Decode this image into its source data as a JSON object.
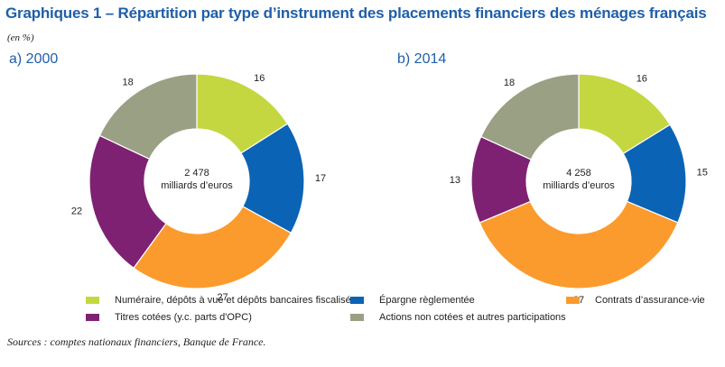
{
  "title": "Graphiques 1 – Répartition par type d’instrument des placements financiers des ménages français",
  "unit": "(en %)",
  "source": "Sources : comptes nationaux financiers, Banque de France.",
  "colors": {
    "numeraire": "#c4d741",
    "epargne": "#0b63b5",
    "assurance": "#fb9b2e",
    "titres": "#7e2173",
    "actions": "#9aa084"
  },
  "legend": [
    {
      "key": "numeraire",
      "label": "Numéraire, dépôts à vue et dépôts bancaires fiscalisés"
    },
    {
      "key": "epargne",
      "label": "Épargne règlementée"
    },
    {
      "key": "assurance",
      "label": "Contrats d’assurance-vie"
    },
    {
      "key": "titres",
      "label": "Titres cotées (y.c. parts d'OPC)"
    },
    {
      "key": "actions",
      "label": "Actions non cotées et autres participations"
    }
  ],
  "chart_data": [
    {
      "type": "pie",
      "title": "a)  2000",
      "center_value": "2 478",
      "center_label": "milliards d’euros",
      "slices": [
        {
          "key": "numeraire",
          "value": 16,
          "label": "16"
        },
        {
          "key": "epargne",
          "value": 17,
          "label": "17"
        },
        {
          "key": "assurance",
          "value": 27,
          "label": "27"
        },
        {
          "key": "titres",
          "value": 22,
          "label": "22"
        },
        {
          "key": "actions",
          "value": 18,
          "label": "18"
        }
      ]
    },
    {
      "type": "pie",
      "title": "b)  2014",
      "center_value": "4 258",
      "center_label": "milliards d’euros",
      "slices": [
        {
          "key": "numeraire",
          "value": 16,
          "label": "16"
        },
        {
          "key": "epargne",
          "value": 15,
          "label": "15"
        },
        {
          "key": "assurance",
          "value": 37,
          "label": "37"
        },
        {
          "key": "titres",
          "value": 13,
          "label": "13"
        },
        {
          "key": "actions",
          "value": 18,
          "label": "18"
        }
      ]
    }
  ]
}
